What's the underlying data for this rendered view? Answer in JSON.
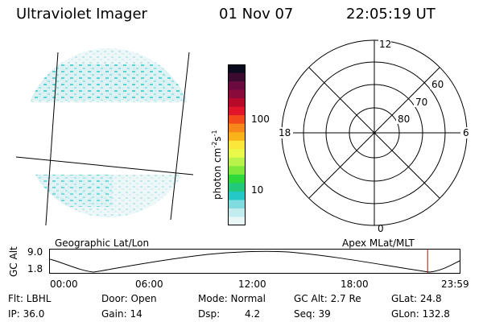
{
  "header": {
    "instrument": "Ultraviolet Imager",
    "date": "01 Nov 07",
    "time": "22:05:19 UT"
  },
  "colorbar": {
    "unit_label": "photon cm",
    "unit_exp1": "-2",
    "unit_s": "s",
    "unit_exp2": "-1",
    "tick_100": "100",
    "tick_10": "10",
    "colors": [
      "#0b0b1e",
      "#3a0b2e",
      "#6a0a3f",
      "#8b0a3c",
      "#b70a2a",
      "#e0152a",
      "#f34a1c",
      "#f7871a",
      "#f9b21a",
      "#fbe63a",
      "#e9f94a",
      "#b9f24a",
      "#7fe83a",
      "#2fd83a",
      "#22c97a",
      "#25c8c6",
      "#7fdbe0",
      "#c3ecef",
      "#e9f6f7"
    ]
  },
  "polar_plot": {
    "label_12": "12",
    "label_18": "18",
    "label_6": "6",
    "label_0": "0",
    "label_60": "60",
    "label_70": "70",
    "label_80": "80"
  },
  "timeline": {
    "axis_label": "GC Alt",
    "y_top": "9.0",
    "y_bottom": "1.8",
    "left_caption": "Geographic Lat/Lon",
    "right_caption": "Apex MLat/MLT",
    "ticks": [
      "00:00",
      "06:00",
      "12:00",
      "18:00",
      "23:59"
    ],
    "current_time_fraction": 0.92
  },
  "info": {
    "flt": "Flt: LBHL",
    "ip": "IP: 36.0",
    "door": "Door: Open",
    "gain": "Gain: 14",
    "mode": "Mode: Normal",
    "dsp_label": "Dsp:",
    "dsp_value": "4.2",
    "gc_alt": "GC Alt: 2.7 Re",
    "seq": "Seq: 39",
    "glat": "GLat:  24.8",
    "glon": "GLon: 132.8"
  }
}
